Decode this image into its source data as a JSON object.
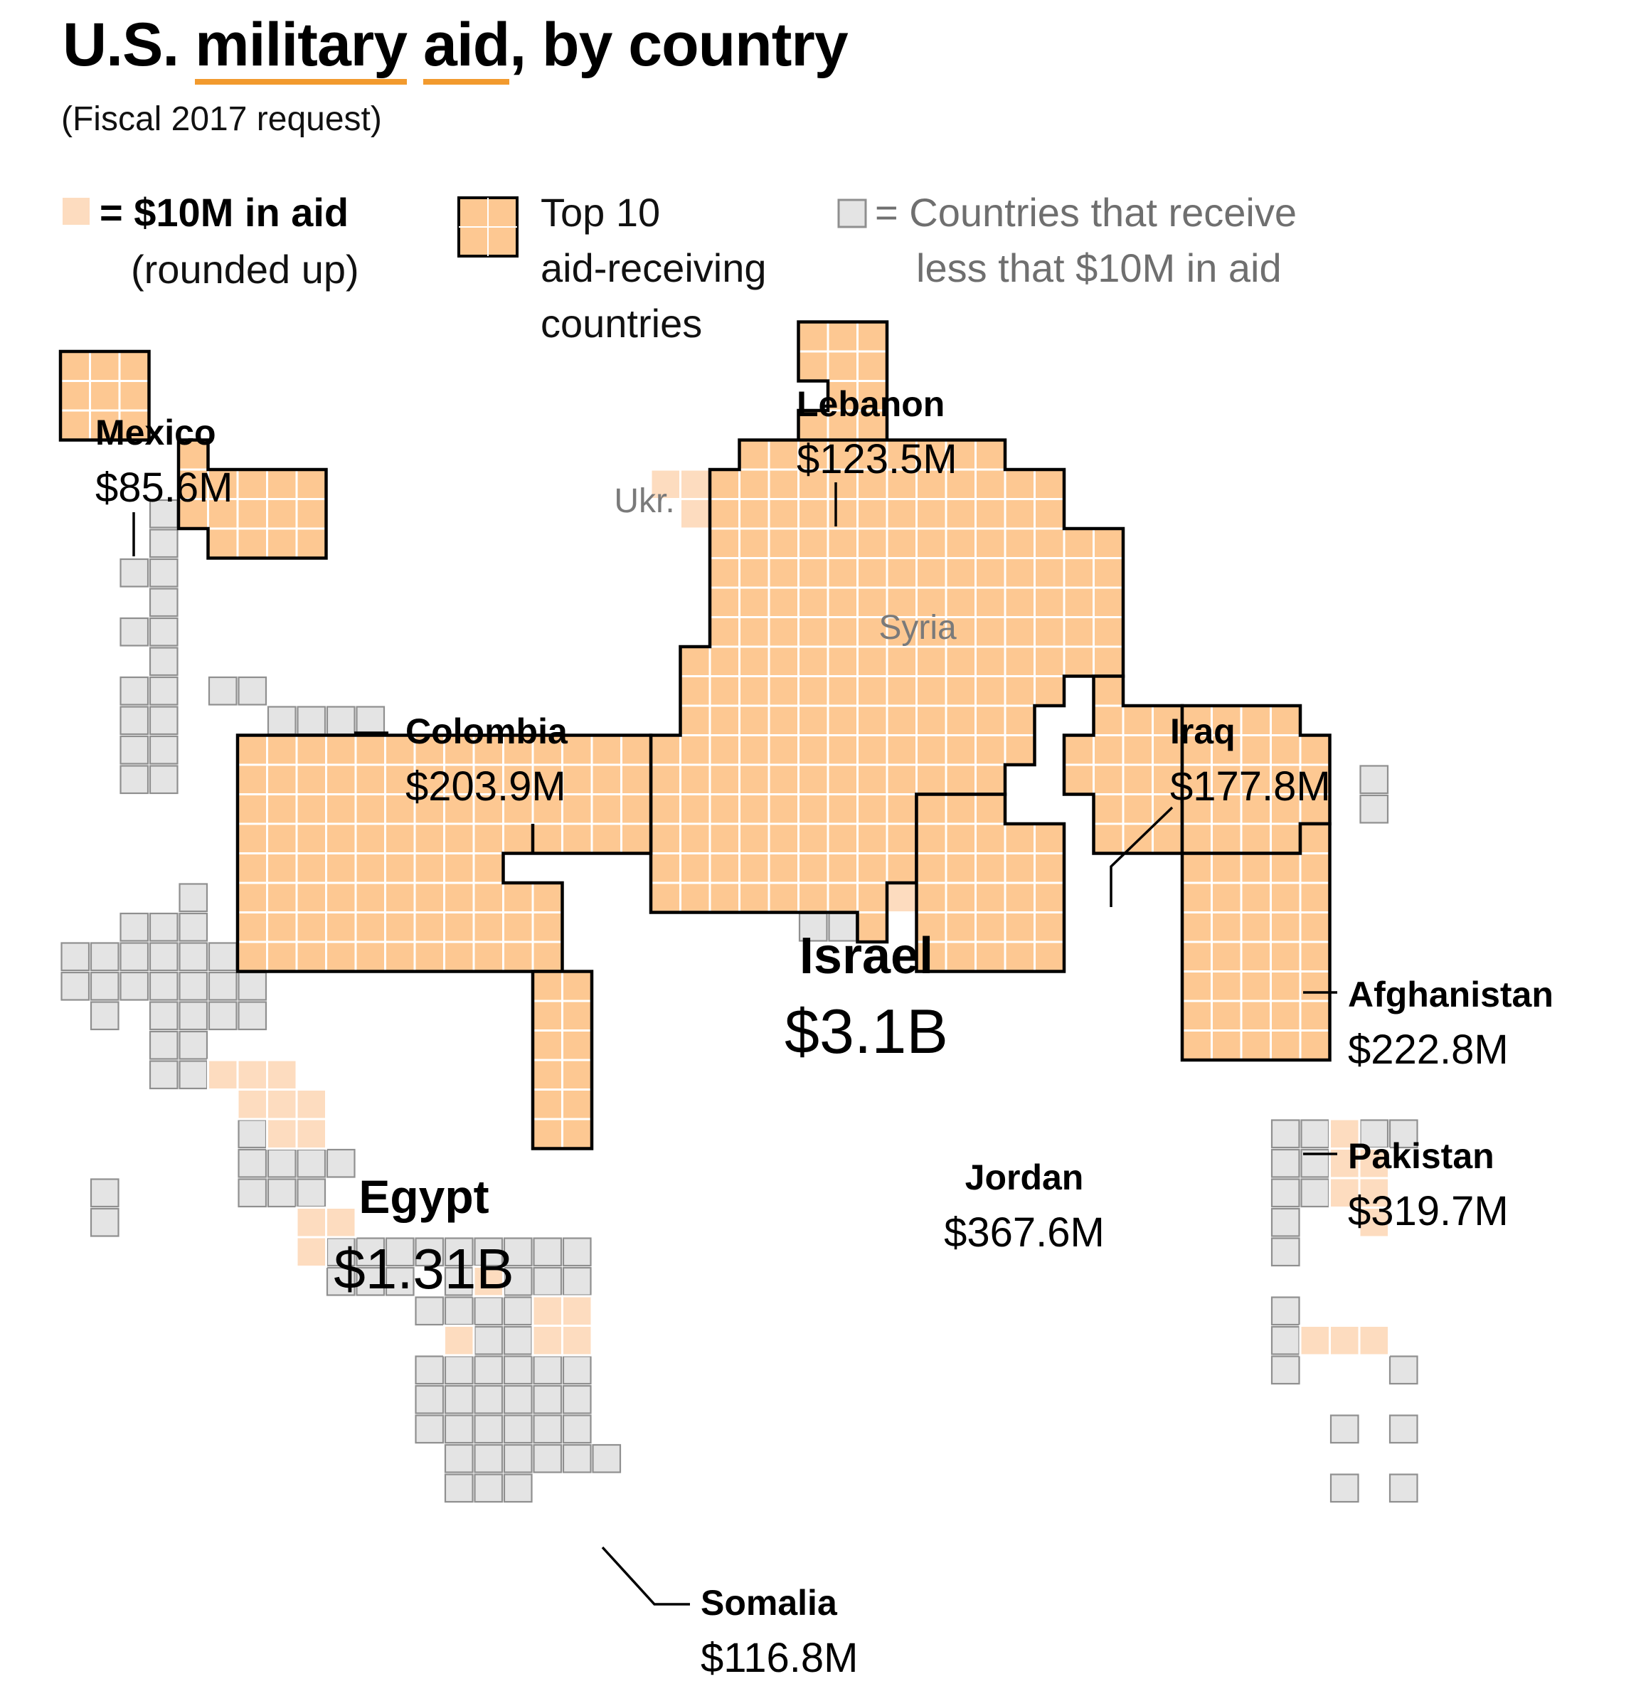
{
  "title": {
    "part1": "U.S. ",
    "underlined1": "military",
    "gap": " ",
    "underlined2": "aid",
    "part2": ", by country"
  },
  "subtitle": "(Fiscal 2017 request)",
  "legend": {
    "unit": "= $10M in aid",
    "unit_note": "(rounded up)",
    "top10_line1": "Top 10",
    "top10_line2": "aid-receiving",
    "top10_line3": "countries",
    "small_line1": "= Countries that receive",
    "small_line2": "less that $10M in aid"
  },
  "colors": {
    "top10_fill": "#fdc892",
    "aid_fill": "#fddcbf",
    "small_fill": "#e4e4e4",
    "small_stroke": "#8f8f8f",
    "outline": "#000000",
    "accent": "#f29a2e",
    "minor_label": "#7a7a7a"
  },
  "chart_data": {
    "type": "tile-cartogram",
    "unit": "$10M in aid (rounded up)",
    "top10": [
      {
        "name": "Israel",
        "amount": "$3.1B",
        "value_musd": 3100
      },
      {
        "name": "Egypt",
        "amount": "$1.31B",
        "value_musd": 1310
      },
      {
        "name": "Jordan",
        "amount": "$367.6M",
        "value_musd": 367.6
      },
      {
        "name": "Pakistan",
        "amount": "$319.7M",
        "value_musd": 319.7
      },
      {
        "name": "Afghanistan",
        "amount": "$222.8M",
        "value_musd": 222.8
      },
      {
        "name": "Colombia",
        "amount": "$203.9M",
        "value_musd": 203.9
      },
      {
        "name": "Iraq",
        "amount": "$177.8M",
        "value_musd": 177.8
      },
      {
        "name": "Lebanon",
        "amount": "$123.5M",
        "value_musd": 123.5
      },
      {
        "name": "Somalia",
        "amount": "$116.8M",
        "value_musd": 116.8
      },
      {
        "name": "Mexico",
        "amount": "$85.6M",
        "value_musd": 85.6
      }
    ],
    "minor_labels": [
      "Ukr.",
      "Syria"
    ]
  }
}
